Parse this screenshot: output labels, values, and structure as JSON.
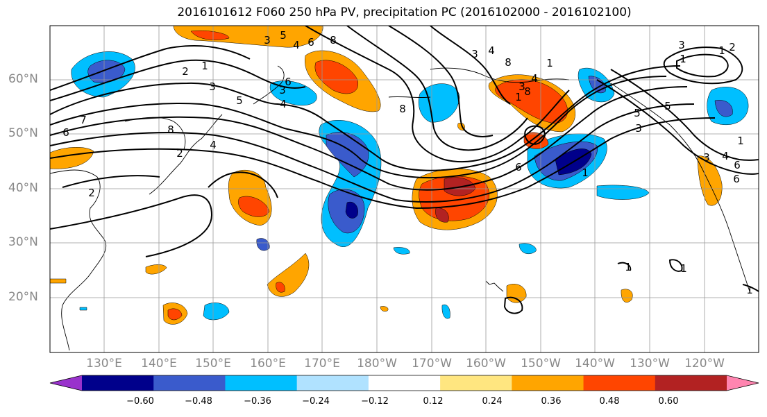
{
  "title": "2016101612 F060 250 hPa PV, precipitation PC (2016102000 - 2016102100)",
  "lat_labels": [
    "60°N",
    "50°N",
    "40°N",
    "30°N",
    "20°N"
  ],
  "lon_labels": [
    "130°E",
    "140°E",
    "150°E",
    "160°E",
    "170°E",
    "180°W",
    "170°W",
    "160°W",
    "150°W",
    "140°W",
    "130°W",
    "120°W"
  ],
  "colorbar": {
    "ticks": [
      "−0.60",
      "−0.48",
      "−0.36",
      "−0.24",
      "−0.12",
      "0.12",
      "0.24",
      "0.36",
      "0.48",
      "0.60"
    ],
    "colors": [
      "#9932CC",
      "#00008B",
      "#3A5BCC",
      "#00BFFF",
      "#B0E2FF",
      "#FFFFFF",
      "#FFE680",
      "#FFA500",
      "#FF4500",
      "#B22222",
      "#FF85B0"
    ]
  },
  "contour_labels": [
    "3",
    "4",
    "5",
    "8",
    "6",
    "3",
    "4",
    "8",
    "1",
    "2",
    "3",
    "5",
    "4",
    "6",
    "3",
    "7",
    "6",
    "8",
    "2",
    "4",
    "2",
    "8",
    "1",
    "3",
    "4",
    "8",
    "1",
    "1",
    "6",
    "1",
    "3",
    "5",
    "3",
    "2",
    "1",
    "6",
    "1",
    "5",
    "3",
    "6",
    "4",
    "1",
    "1",
    "1"
  ]
}
